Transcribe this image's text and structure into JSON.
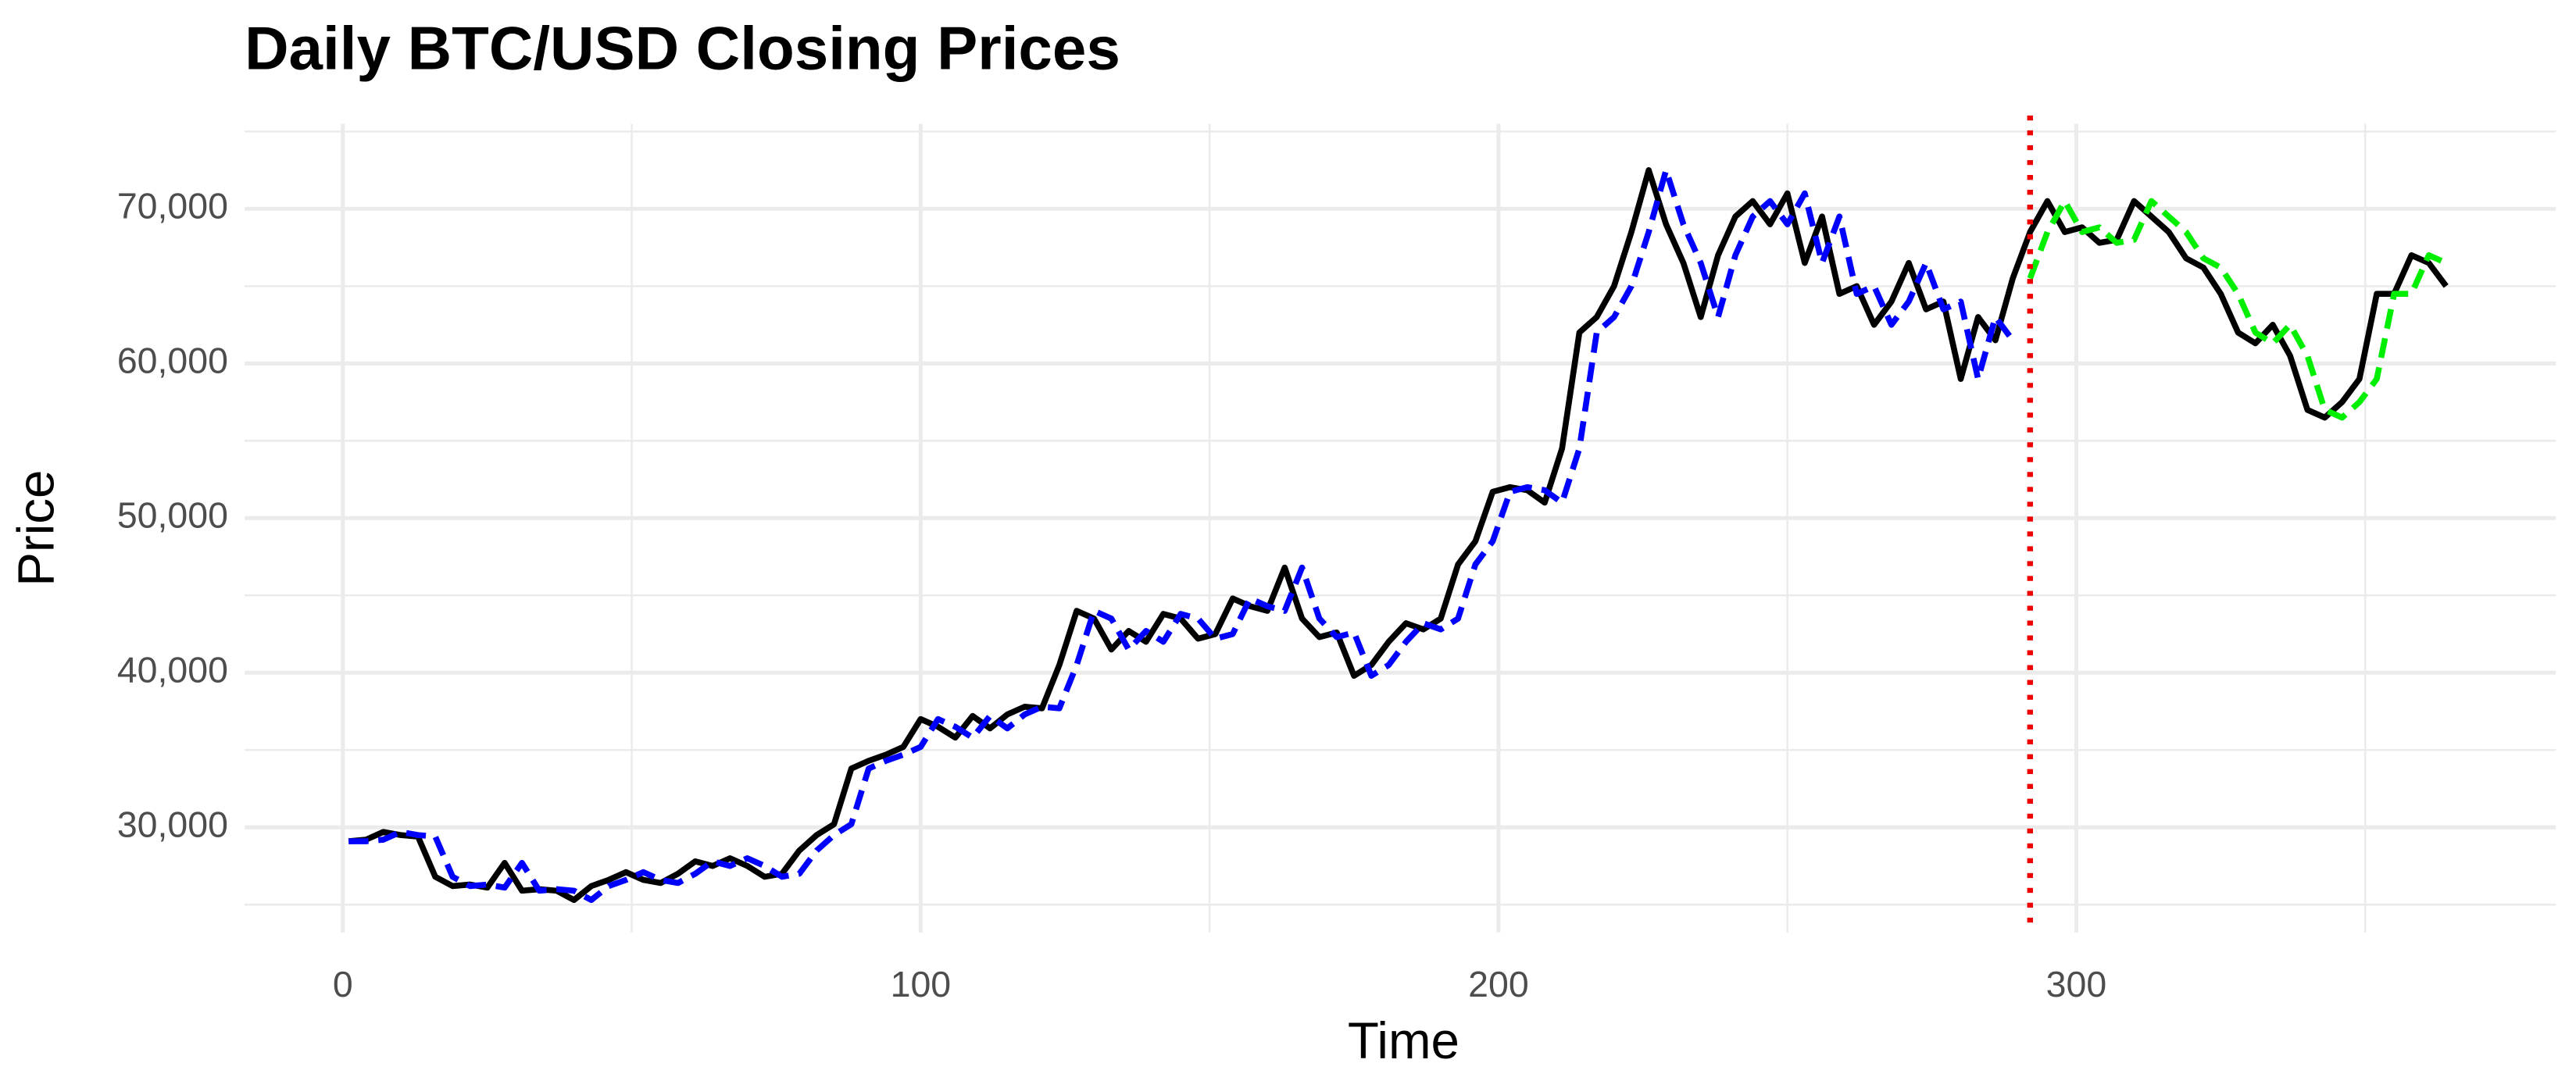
{
  "chart_data": {
    "type": "line",
    "title": "Daily BTC/USD Closing Prices",
    "x_label": "Time",
    "y_label": "Price",
    "x": [
      1,
      4,
      7,
      10,
      13,
      16,
      19,
      22,
      25,
      28,
      31,
      34,
      37,
      40,
      43,
      46,
      49,
      52,
      55,
      58,
      61,
      64,
      67,
      70,
      73,
      76,
      79,
      82,
      85,
      88,
      91,
      94,
      97,
      100,
      103,
      106,
      109,
      112,
      115,
      118,
      121,
      124,
      127,
      130,
      133,
      136,
      139,
      142,
      145,
      148,
      151,
      154,
      157,
      160,
      163,
      166,
      169,
      172,
      175,
      178,
      181,
      184,
      187,
      190,
      193,
      196,
      199,
      202,
      205,
      208,
      211,
      214,
      217,
      220,
      223,
      226,
      229,
      232,
      235,
      238,
      241,
      244,
      247,
      250,
      253,
      256,
      259,
      262,
      265,
      268,
      271,
      274,
      277,
      280,
      283,
      286,
      289,
      292,
      295,
      298,
      301,
      304,
      307,
      310,
      313,
      316,
      319,
      322,
      325,
      328,
      331,
      334,
      337,
      340,
      343,
      346,
      349,
      352,
      355,
      358,
      361,
      364
    ],
    "series": [
      {
        "color": "#000000",
        "dash": "solid",
        "values": [
          29100,
          29200,
          29700,
          29500,
          29400,
          26800,
          26200,
          26300,
          26100,
          27700,
          25900,
          26000,
          25900,
          25300,
          26200,
          26600,
          27100,
          26600,
          26400,
          27000,
          27800,
          27500,
          28000,
          27500,
          26800,
          27000,
          28500,
          29500,
          30200,
          33800,
          34300,
          34700,
          35200,
          37000,
          36500,
          35800,
          37200,
          36400,
          37300,
          37800,
          37700,
          40500,
          44000,
          43500,
          41500,
          42700,
          42000,
          43800,
          43500,
          42200,
          42500,
          44800,
          44300,
          44000,
          46800,
          43500,
          42300,
          42600,
          39800,
          40500,
          42000,
          43200,
          42800,
          43500,
          47000,
          48500,
          51700,
          52000,
          51800,
          51000,
          54500,
          62000,
          63000,
          65000,
          68500,
          72500,
          69000,
          66500,
          63000,
          67000,
          69500,
          70500,
          69000,
          71000,
          66500,
          69500,
          64500,
          65000,
          62500,
          64000,
          66500,
          63500,
          64000,
          59000,
          63000,
          61500,
          65500,
          68500,
          70500,
          68500,
          68800,
          67800,
          68000,
          70500,
          69500,
          68500,
          66800,
          66200,
          64500,
          62000,
          61300,
          62500,
          60500,
          57000,
          56500,
          57500,
          59000,
          64500,
          64500,
          67000,
          66500,
          65000
        ]
      },
      {
        "color": "#0000ff",
        "dash": "dashed",
        "values": [
          29100,
          29100,
          29200,
          29700,
          29500,
          29400,
          26800,
          26200,
          26300,
          26100,
          27700,
          25900,
          26000,
          25900,
          25300,
          26200,
          26600,
          27100,
          26600,
          26400,
          27000,
          27800,
          27500,
          28000,
          27500,
          26800,
          27000,
          28500,
          29500,
          30200,
          33800,
          34300,
          34700,
          35200,
          37000,
          36500,
          35800,
          37200,
          36400,
          37300,
          37800,
          37700,
          40500,
          44000,
          43500,
          41500,
          42700,
          42000,
          43800,
          43500,
          42200,
          42500,
          44800,
          44300,
          44000,
          46800,
          43500,
          42300,
          42600,
          39800,
          40500,
          42000,
          43200,
          42800,
          43500,
          47000,
          48500,
          51700,
          52000,
          51800,
          51000,
          54500,
          62000,
          63000,
          65000,
          68500,
          72500,
          69000,
          66500,
          63000,
          67000,
          69500,
          70500,
          69000,
          71000,
          66500,
          69500,
          64500,
          65000,
          62500,
          64000,
          66500,
          63500,
          64000,
          59000,
          63000,
          61500,
          null,
          null,
          null,
          null,
          null,
          null,
          null,
          null,
          null,
          null,
          null,
          null,
          null,
          null,
          null,
          null,
          null,
          null,
          null,
          null,
          null,
          null,
          null,
          null,
          null
        ]
      },
      {
        "color": "#00ee00",
        "dash": "dashed",
        "values": [
          null,
          null,
          null,
          null,
          null,
          null,
          null,
          null,
          null,
          null,
          null,
          null,
          null,
          null,
          null,
          null,
          null,
          null,
          null,
          null,
          null,
          null,
          null,
          null,
          null,
          null,
          null,
          null,
          null,
          null,
          null,
          null,
          null,
          null,
          null,
          null,
          null,
          null,
          null,
          null,
          null,
          null,
          null,
          null,
          null,
          null,
          null,
          null,
          null,
          null,
          null,
          null,
          null,
          null,
          null,
          null,
          null,
          null,
          null,
          null,
          null,
          null,
          null,
          null,
          null,
          null,
          null,
          null,
          null,
          null,
          null,
          null,
          null,
          null,
          null,
          null,
          null,
          null,
          null,
          null,
          null,
          null,
          null,
          null,
          null,
          null,
          null,
          null,
          null,
          null,
          null,
          null,
          null,
          null,
          null,
          null,
          null,
          65500,
          68500,
          70500,
          68500,
          68800,
          67800,
          68000,
          70500,
          69500,
          68500,
          66800,
          66200,
          64500,
          62000,
          61300,
          62500,
          60500,
          57000,
          56500,
          57500,
          59000,
          64500,
          64500,
          67000,
          66500
        ]
      }
    ],
    "vline": {
      "value": 292,
      "color": "#ee0000"
    },
    "xlim": [
      -17,
      383
    ],
    "ylim": [
      23200,
      75500
    ],
    "xticks": [
      0,
      100,
      200,
      300
    ],
    "yticks": [
      {
        "value": 30000,
        "label": "30,000"
      },
      {
        "value": 40000,
        "label": "40,000"
      },
      {
        "value": 50000,
        "label": "50,000"
      },
      {
        "value": 60000,
        "label": "60,000"
      },
      {
        "value": 70000,
        "label": "70,000"
      }
    ],
    "minor_xticks": [
      50,
      150,
      250,
      350
    ],
    "minor_yticks": [
      25000,
      35000,
      45000,
      55000,
      65000,
      75000
    ],
    "grid": true
  }
}
